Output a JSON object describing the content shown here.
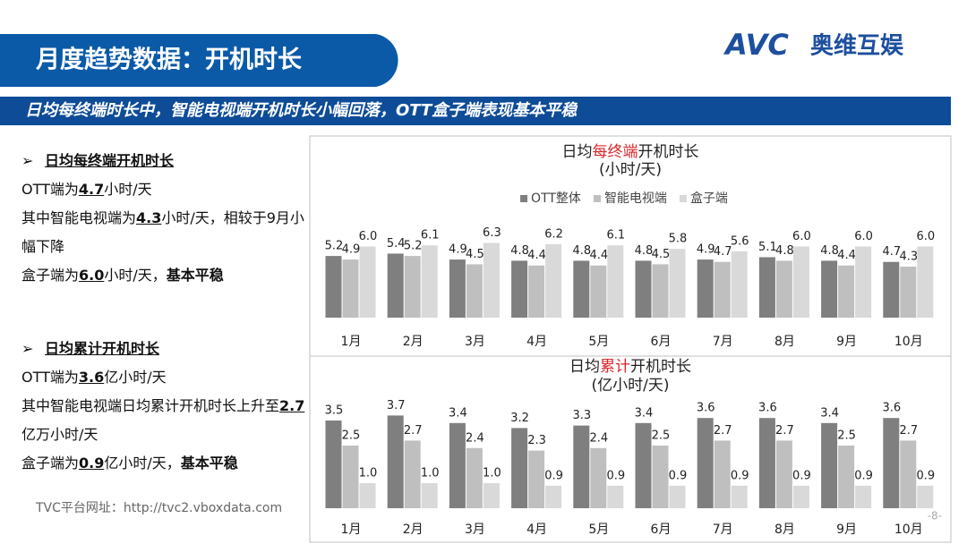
{
  "header": {
    "title": "月度趋势数据：开机时长",
    "logo_mark": "AVC",
    "logo_text": "奥维互娱"
  },
  "banner": "日均每终端时长中，智能电视端开机时长小幅回落，OTT盒子端表现基本平稳",
  "sections": [
    {
      "heading": "日均每终端开机时长",
      "lines": [
        [
          "OTT端为",
          "4.7",
          "小时/天"
        ],
        [
          "其中智能电视端为",
          "4.3",
          "小时/天，相较于9月小幅下降"
        ],
        [
          "盒子端为",
          "6.0",
          "小时/天，",
          "基本平稳"
        ]
      ]
    },
    {
      "heading": "日均累计开机时长",
      "lines": [
        [
          "OTT端为",
          "3.6",
          "亿小时/天"
        ],
        [
          "其中智能电视端日均累计开机时长上升至",
          "2.7",
          "亿万小时/天"
        ],
        [
          "盒子端为",
          "0.9",
          "亿小时/天，",
          "基本平稳"
        ]
      ]
    }
  ],
  "footer": {
    "url": "TVC平台网址：http://tvc2.vboxdata.com",
    "page": "-8-"
  },
  "chart_data": [
    {
      "type": "bar",
      "title": [
        "日均",
        "每终端",
        "开机时长"
      ],
      "subtitle": "(小时/天)",
      "categories": [
        "1月",
        "2月",
        "3月",
        "4月",
        "5月",
        "6月",
        "7月",
        "8月",
        "9月",
        "10月"
      ],
      "series": [
        {
          "name": "OTT整体",
          "color": "#7f7f7f",
          "values": [
            5.2,
            5.4,
            4.9,
            4.8,
            4.8,
            4.8,
            4.9,
            5.1,
            4.8,
            4.7
          ],
          "value_labels": [
            "5.2",
            "5.4",
            "4.9",
            "4.8",
            "4.8",
            "4.8",
            "4.9",
            "5.1",
            "4.8",
            "4.7"
          ]
        },
        {
          "name": "智能电视端",
          "color": "#bfbfbf",
          "values": [
            4.9,
            5.2,
            4.5,
            4.4,
            4.4,
            4.5,
            4.7,
            4.8,
            4.4,
            4.3
          ],
          "value_labels": [
            "4.9",
            "5.2",
            "4.5",
            "4.4",
            "4.4",
            "4.5",
            "4.7",
            "4.8",
            "4.4",
            "4.3"
          ]
        },
        {
          "name": "盒子端",
          "color": "#d9d9d9",
          "values": [
            6.0,
            6.1,
            6.3,
            6.2,
            6.1,
            5.8,
            5.6,
            6.0,
            6.0,
            6.0
          ],
          "value_labels": [
            "6.0",
            "6.1",
            "6.3",
            "6.2",
            "6.1",
            "5.8",
            "5.6",
            "6.0",
            "6.0",
            "6.0"
          ]
        }
      ],
      "ylim": [
        0,
        8
      ],
      "legend": "top"
    },
    {
      "type": "bar",
      "title": [
        "日均",
        "累计",
        "开机时长"
      ],
      "subtitle": "(亿小时/天)",
      "categories": [
        "1月",
        "2月",
        "3月",
        "4月",
        "5月",
        "6月",
        "7月",
        "8月",
        "9月",
        "10月"
      ],
      "series": [
        {
          "color": "#7f7f7f",
          "values": [
            3.5,
            3.7,
            3.4,
            3.2,
            3.3,
            3.4,
            3.6,
            3.6,
            3.4,
            3.6
          ],
          "value_labels": [
            "3.5",
            "3.7",
            "3.4",
            "3.2",
            "3.3",
            "3.4",
            "3.6",
            "3.6",
            "3.4",
            "3.6"
          ]
        },
        {
          "color": "#bfbfbf",
          "values": [
            2.5,
            2.7,
            2.4,
            2.3,
            2.4,
            2.5,
            2.7,
            2.7,
            2.5,
            2.7
          ],
          "value_labels": [
            "2.5",
            "2.7",
            "2.4",
            "2.3",
            "2.4",
            "2.5",
            "2.7",
            "2.7",
            "2.5",
            "2.7"
          ]
        },
        {
          "color": "#d9d9d9",
          "values": [
            1.0,
            1.0,
            1.0,
            0.9,
            0.9,
            0.9,
            0.9,
            0.9,
            0.9,
            0.9
          ],
          "value_labels": [
            "1.0",
            "1.0",
            "1.0",
            "0.9",
            "0.9",
            "0.9",
            "0.9",
            "0.9",
            "0.9",
            "0.9"
          ]
        }
      ],
      "ylim": [
        0,
        4
      ]
    }
  ]
}
